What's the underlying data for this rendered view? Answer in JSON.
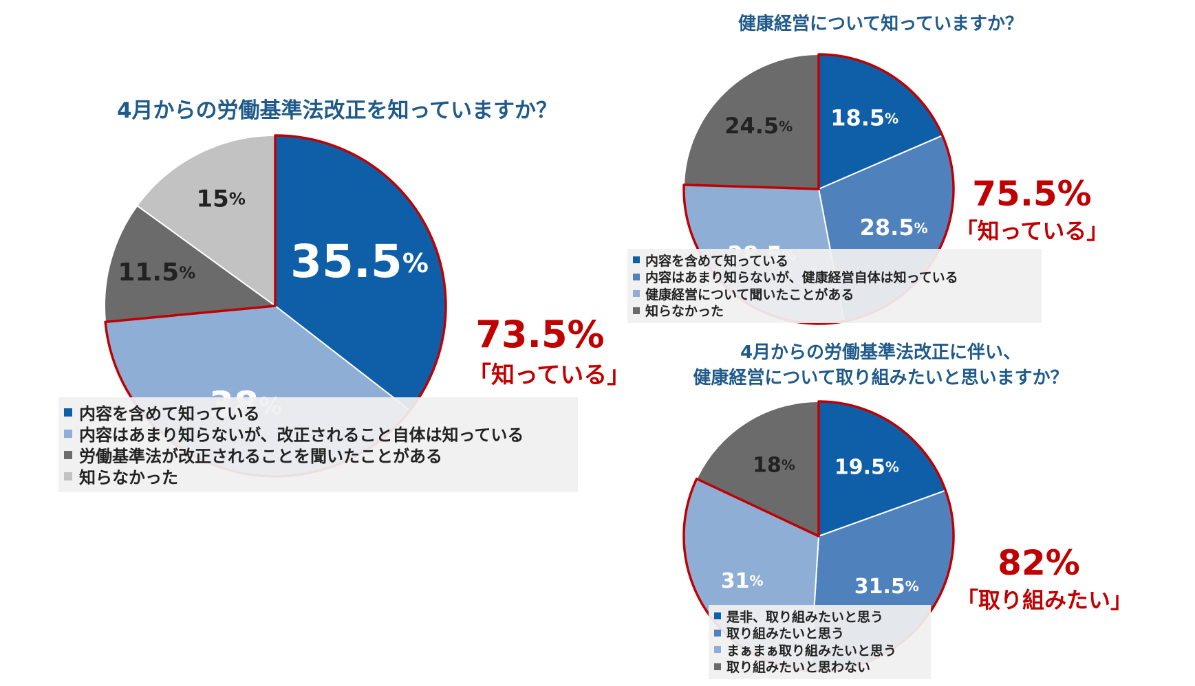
{
  "chart_data": [
    {
      "type": "pie",
      "title": "4月からの労働基準法改正を知っていますか？",
      "slices": [
        {
          "label": "内容を含めて知っている",
          "value": 35.5,
          "display": "35.5",
          "color": "#0f5fa8"
        },
        {
          "label": "内容はあまり知らないが、改正されること自体は知っている",
          "value": 38,
          "display": "38",
          "color": "#8eaed6"
        },
        {
          "label": "労働基準法が改正されることを聞いたことがある",
          "value": 11.5,
          "display": "11.5",
          "color": "#6b6b6b"
        },
        {
          "label": "知らなかった",
          "value": 15,
          "display": "15",
          "color": "#c2c2c2"
        }
      ],
      "highlighted_slices": [
        0,
        1
      ],
      "unit": "%",
      "summary_value": "73.5%",
      "summary_label": "「知っている」"
    },
    {
      "type": "pie",
      "title": "健康経営について知っていますか？",
      "slices": [
        {
          "label": "内容を含めて知っている",
          "value": 18.5,
          "display": "18.5",
          "color": "#0f5fa8"
        },
        {
          "label": "内容はあまり知らないが、健康経営自体は知っている",
          "value": 28.5,
          "display": "28.5",
          "color": "#4f81bd"
        },
        {
          "label": "健康経営について聞いたことがある",
          "value": 28.5,
          "display": "28.5",
          "color": "#8eaed6"
        },
        {
          "label": "知らなかった",
          "value": 24.5,
          "display": "24.5",
          "color": "#6b6b6b"
        }
      ],
      "highlighted_slices": [
        0,
        1,
        2
      ],
      "unit": "%",
      "summary_value": "75.5%",
      "summary_label": "「知っている」"
    },
    {
      "type": "pie",
      "title": "4月からの労働基準法改正に伴い、健康経営について取り組みたいと思いますか？",
      "title_lines": [
        "4月からの労働基準法改正に伴い、",
        "健康経営について取り組みたいと思いますか？"
      ],
      "slices": [
        {
          "label": "是非、取り組みたいと思う",
          "value": 19.5,
          "display": "19.5",
          "color": "#0f5fa8"
        },
        {
          "label": "取り組みたいと思う",
          "value": 31.5,
          "display": "31.5",
          "color": "#4f81bd"
        },
        {
          "label": "まぁまぁ取り組みたいと思う",
          "value": 31,
          "display": "31",
          "color": "#8eaed6"
        },
        {
          "label": "取り組みたいと思わない",
          "value": 18,
          "display": "18",
          "color": "#6b6b6b"
        }
      ],
      "highlighted_slices": [
        0,
        1,
        2
      ],
      "unit": "%",
      "summary_value": "82%",
      "summary_label": "「取り組みたい」"
    }
  ],
  "highlight_color": "#c00000"
}
